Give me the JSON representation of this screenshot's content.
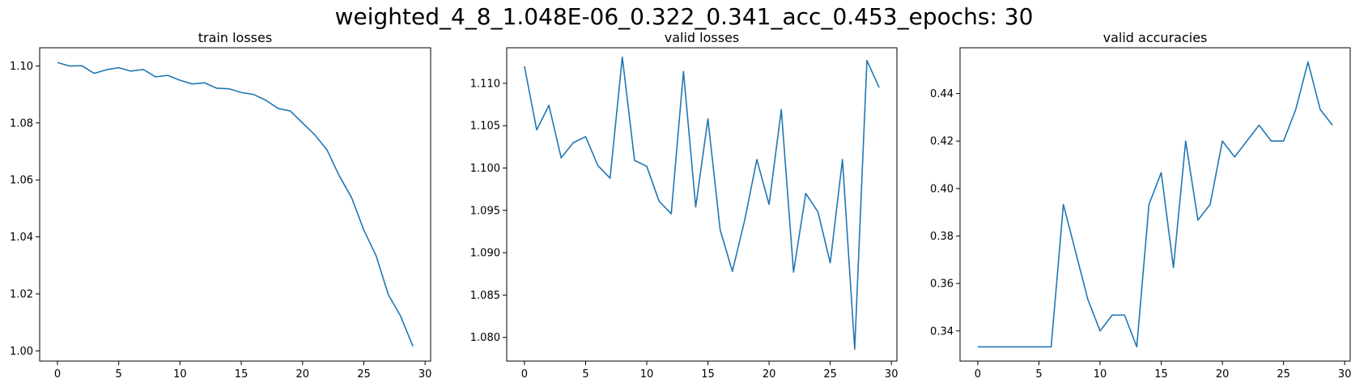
{
  "figure": {
    "suptitle": "weighted_4_8_1.048E-06_0.322_0.341_acc_0.453_epochs: 30"
  },
  "colors": {
    "line": "#1f77b4",
    "axes": "#000000",
    "background": "#ffffff"
  },
  "chart_data": [
    {
      "type": "line",
      "title": "train losses",
      "xlabel": "",
      "ylabel": "",
      "xlim": [
        -1.45,
        30.45
      ],
      "ylim": [
        0.9964,
        1.1064
      ],
      "xticks": [
        0,
        5,
        10,
        15,
        20,
        25,
        30
      ],
      "yticks": [
        1.0,
        1.02,
        1.04,
        1.06,
        1.08,
        1.1
      ],
      "ytick_labels": [
        "1.00",
        "1.02",
        "1.04",
        "1.06",
        "1.08",
        "1.10"
      ],
      "grid": false,
      "series": [
        {
          "x": [
            0,
            1,
            2,
            3,
            4,
            5,
            6,
            7,
            8,
            9,
            10,
            11,
            12,
            13,
            14,
            15,
            16,
            17,
            18,
            19,
            20,
            21,
            22,
            23,
            24,
            25,
            26,
            27,
            28,
            29
          ],
          "y": [
            1.1012,
            1.1,
            1.1001,
            1.0974,
            1.0987,
            1.0994,
            1.0982,
            1.0988,
            1.0962,
            1.0967,
            1.095,
            1.0937,
            1.0941,
            1.0922,
            1.092,
            1.0907,
            1.09,
            1.088,
            1.0851,
            1.0842,
            1.08,
            1.0758,
            1.0705,
            1.0614,
            1.0538,
            1.0424,
            1.0334,
            1.0197,
            1.0122,
            1.0016
          ]
        }
      ]
    },
    {
      "type": "line",
      "title": "valid losses",
      "xlabel": "",
      "ylabel": "",
      "xlim": [
        -1.45,
        30.45
      ],
      "ylim": [
        1.0772,
        1.1142
      ],
      "xticks": [
        0,
        5,
        10,
        15,
        20,
        25,
        30
      ],
      "yticks": [
        1.08,
        1.085,
        1.09,
        1.095,
        1.1,
        1.105,
        1.11
      ],
      "ytick_labels": [
        "1.080",
        "1.085",
        "1.090",
        "1.095",
        "1.100",
        "1.105",
        "1.110"
      ],
      "grid": false,
      "series": [
        {
          "x": [
            0,
            1,
            2,
            3,
            4,
            5,
            6,
            7,
            8,
            9,
            10,
            11,
            12,
            13,
            14,
            15,
            16,
            17,
            18,
            19,
            20,
            21,
            22,
            23,
            24,
            25,
            26,
            27,
            28,
            29
          ],
          "y": [
            1.112,
            1.1045,
            1.1074,
            1.1012,
            1.103,
            1.1037,
            1.1003,
            1.0988,
            1.1131,
            1.1009,
            1.1002,
            1.0961,
            1.0946,
            1.1114,
            1.0954,
            1.1058,
            1.0927,
            1.0878,
            1.0938,
            1.101,
            1.0957,
            1.1069,
            1.0877,
            1.097,
            1.0948,
            1.0888,
            1.101,
            1.0786,
            1.1127,
            1.1095
          ]
        }
      ]
    },
    {
      "type": "line",
      "title": "valid accuracies",
      "xlabel": "",
      "ylabel": "",
      "xlim": [
        -1.45,
        30.45
      ],
      "ylim": [
        0.3273,
        0.4593
      ],
      "xticks": [
        0,
        5,
        10,
        15,
        20,
        25,
        30
      ],
      "yticks": [
        0.34,
        0.36,
        0.38,
        0.4,
        0.42,
        0.44
      ],
      "ytick_labels": [
        "0.34",
        "0.36",
        "0.38",
        "0.40",
        "0.42",
        "0.44"
      ],
      "grid": false,
      "series": [
        {
          "x": [
            0,
            1,
            2,
            3,
            4,
            5,
            6,
            7,
            8,
            9,
            10,
            11,
            12,
            13,
            14,
            15,
            16,
            17,
            18,
            19,
            20,
            21,
            22,
            23,
            24,
            25,
            26,
            27,
            28,
            29
          ],
          "y": [
            0.3333,
            0.3333,
            0.3333,
            0.3333,
            0.3333,
            0.3333,
            0.3333,
            0.3933,
            0.3733,
            0.3533,
            0.34,
            0.3467,
            0.3467,
            0.3333,
            0.3933,
            0.4067,
            0.3667,
            0.42,
            0.3867,
            0.3933,
            0.42,
            0.4133,
            0.42,
            0.4267,
            0.42,
            0.42,
            0.4333,
            0.4533,
            0.4333,
            0.4267
          ]
        }
      ]
    }
  ]
}
